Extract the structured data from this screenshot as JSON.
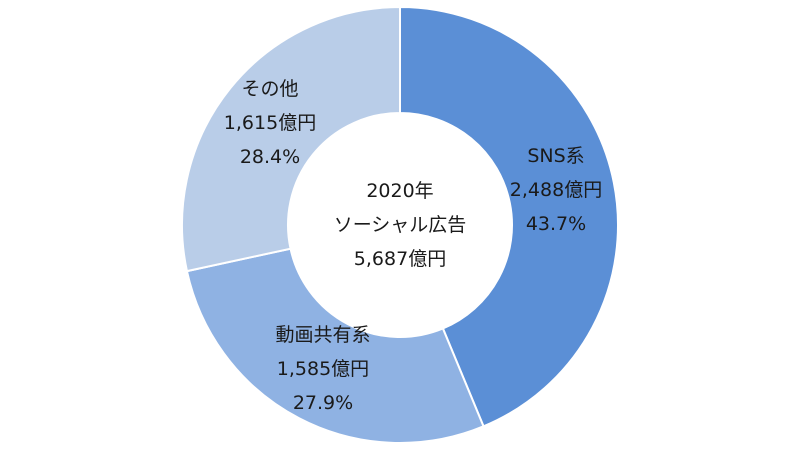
{
  "chart_data": {
    "type": "pie",
    "variant": "donut",
    "center": {
      "year": "2020年",
      "title": "ソーシャル広告",
      "total": "5,687億円"
    },
    "unit": "億円",
    "slices": [
      {
        "name": "SNS系",
        "value": 2488,
        "value_label": "2,488億円",
        "percent": 43.7,
        "percent_label": "43.7%",
        "color": "#5b8fd6"
      },
      {
        "name": "動画共有系",
        "value": 1585,
        "value_label": "1,585億円",
        "percent": 27.9,
        "percent_label": "27.9%",
        "color": "#8fb2e3"
      },
      {
        "name": "その他",
        "value": 1615,
        "value_label": "1,615億円",
        "percent": 28.4,
        "percent_label": "28.4%",
        "color": "#b9cde8"
      }
    ],
    "start_angle": "top",
    "direction": "clockwise"
  }
}
